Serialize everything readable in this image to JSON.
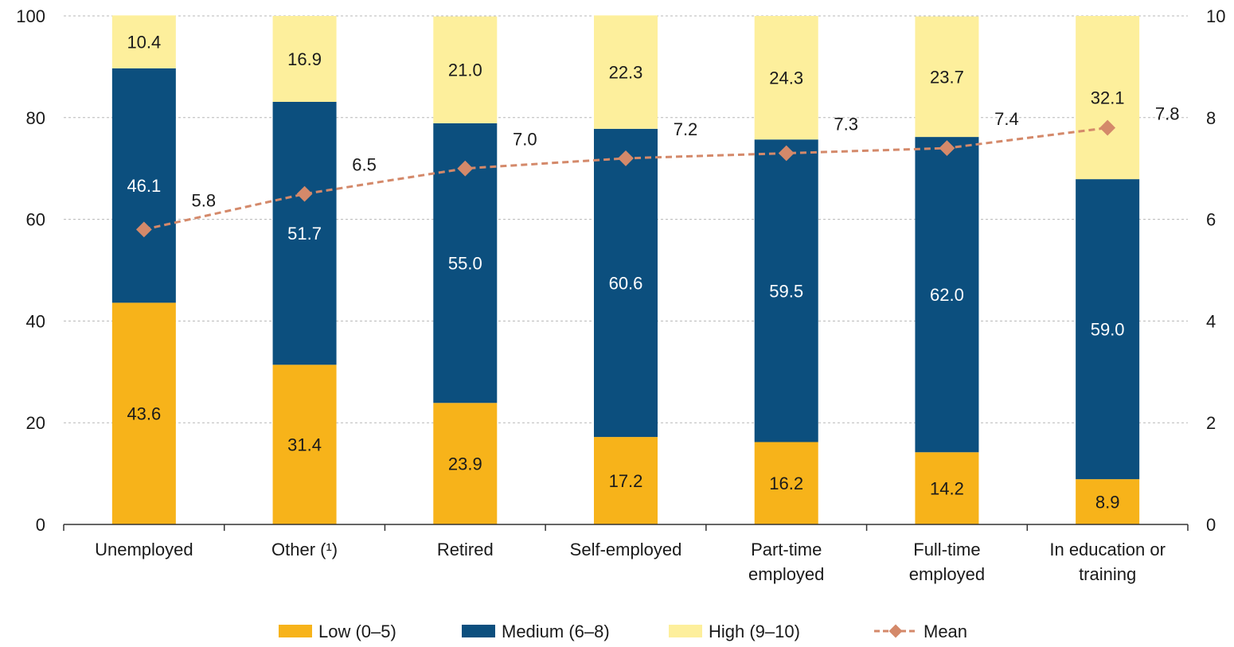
{
  "chart_data": {
    "type": "bar",
    "stacked": true,
    "categories": [
      [
        "Unemployed"
      ],
      [
        "Other (¹)"
      ],
      [
        "Retired"
      ],
      [
        "Self-employed"
      ],
      [
        "Part-time",
        "employed"
      ],
      [
        "Full-time",
        "employed"
      ],
      [
        "In education or",
        "training"
      ]
    ],
    "series": [
      {
        "name": "Low (0–5)",
        "color": "#f7b31a",
        "values": [
          43.6,
          31.4,
          23.9,
          17.2,
          16.2,
          14.2,
          8.9
        ]
      },
      {
        "name": "Medium (6–8)",
        "color": "#0c4f7e",
        "values": [
          46.1,
          51.7,
          55.0,
          60.6,
          59.5,
          62.0,
          59.0
        ]
      },
      {
        "name": "High (9–10)",
        "color": "#fdef9c",
        "values": [
          10.4,
          16.9,
          21.0,
          22.3,
          24.3,
          23.7,
          32.1
        ]
      }
    ],
    "value_labels": [
      [
        "43.6",
        "31.4",
        "23.9",
        "17.2",
        "16.2",
        "14.2",
        "8.9"
      ],
      [
        "46.1",
        "51.7",
        "55.0",
        "60.6",
        "59.5",
        "62.0",
        "59.0"
      ],
      [
        "10.4",
        "16.9",
        "21.0",
        "22.3",
        "24.3",
        "23.7",
        "32.1"
      ]
    ],
    "line_series": {
      "name": "Mean",
      "axis": "right",
      "color": "#d4896a",
      "values": [
        5.8,
        6.5,
        7.0,
        7.2,
        7.3,
        7.4,
        7.8
      ],
      "labels": [
        "5.8",
        "6.5",
        "7.0",
        "7.2",
        "7.3",
        "7.4",
        "7.8"
      ]
    },
    "ylim": [
      0,
      100
    ],
    "yticks": [
      "0",
      "20",
      "40",
      "60",
      "80",
      "100"
    ],
    "y2lim": [
      0,
      10
    ],
    "y2ticks": [
      "0",
      "2",
      "4",
      "6",
      "8",
      "10"
    ],
    "grid": true,
    "legend_position": "bottom",
    "title": "",
    "xlabel": "",
    "ylabel": ""
  }
}
